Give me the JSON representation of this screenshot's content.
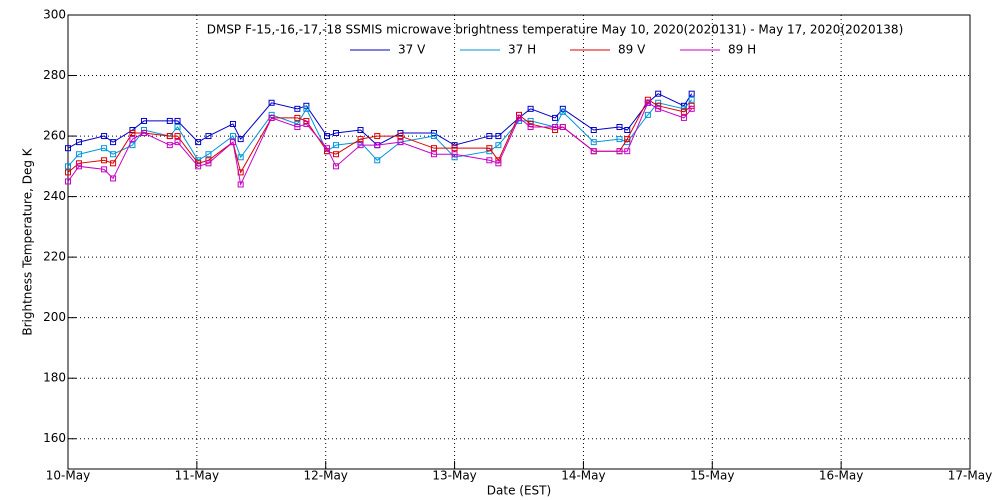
{
  "chart_data": {
    "type": "line",
    "title": "DMSP F-15,-16,-17,-18 SSMIS microwave brightness temperature May 10, 2020(2020131) - May 17, 2020(2020138)",
    "x_label": "Date (EST)",
    "y_label": "Brightness Temperature, Deg K",
    "x": [
      10.0,
      10.085,
      10.28,
      10.35,
      10.5,
      10.59,
      10.79,
      10.85,
      11.01,
      11.09,
      11.28,
      11.34,
      11.58,
      11.78,
      11.85,
      12.01,
      12.08,
      12.27,
      12.4,
      12.58,
      12.84,
      13.0,
      13.27,
      13.34,
      13.5,
      13.59,
      13.78,
      13.84,
      14.08,
      14.28,
      14.34,
      14.5,
      14.58,
      14.78,
      14.84
    ],
    "series": [
      {
        "name": "37 V",
        "color": "#0000c8",
        "values": [
          256,
          258,
          260,
          258,
          262,
          265,
          265,
          265,
          258,
          260,
          264,
          259,
          271,
          269,
          270,
          260,
          261,
          262,
          257,
          261,
          261,
          257,
          260,
          260,
          266,
          269,
          266,
          269,
          262,
          263,
          262,
          271,
          274,
          270,
          274
        ]
      },
      {
        "name": "37 H",
        "color": "#0096dc",
        "values": [
          250,
          254,
          256,
          254,
          257,
          262,
          260,
          263,
          252,
          254,
          260,
          253,
          267,
          264,
          269,
          255,
          257,
          258,
          252,
          258,
          260,
          253,
          255,
          257,
          265,
          265,
          263,
          268,
          258,
          259,
          258,
          267,
          271,
          269,
          272
        ]
      },
      {
        "name": "89 V",
        "color": "#dc0000",
        "values": [
          248,
          251,
          252,
          251,
          261,
          261,
          260,
          260,
          251,
          252,
          258,
          248,
          266,
          266,
          265,
          255,
          254,
          259,
          260,
          260,
          256,
          256,
          256,
          252,
          267,
          264,
          262,
          263,
          255,
          255,
          259,
          272,
          270,
          268,
          270
        ]
      },
      {
        "name": "89 H",
        "color": "#c800c8",
        "values": [
          245,
          250,
          249,
          246,
          259,
          261,
          257,
          258,
          250,
          251,
          258,
          244,
          266,
          263,
          264,
          256,
          250,
          257,
          257,
          258,
          254,
          254,
          252,
          251,
          266,
          263,
          263,
          263,
          255,
          255,
          255,
          271,
          269,
          266,
          269
        ]
      }
    ],
    "xlim": [
      10,
      17
    ],
    "xticks": [
      {
        "value": 10,
        "label": "10-May"
      },
      {
        "value": 11,
        "label": "11-May"
      },
      {
        "value": 12,
        "label": "12-May"
      },
      {
        "value": 13,
        "label": "13-May"
      },
      {
        "value": 14,
        "label": "14-May"
      },
      {
        "value": 15,
        "label": "15-May"
      },
      {
        "value": 16,
        "label": "16-May"
      },
      {
        "value": 17,
        "label": "17-May"
      }
    ],
    "ylim": [
      150,
      300
    ],
    "yticks": [
      160,
      180,
      200,
      220,
      240,
      260,
      280,
      300
    ],
    "grid": true
  }
}
